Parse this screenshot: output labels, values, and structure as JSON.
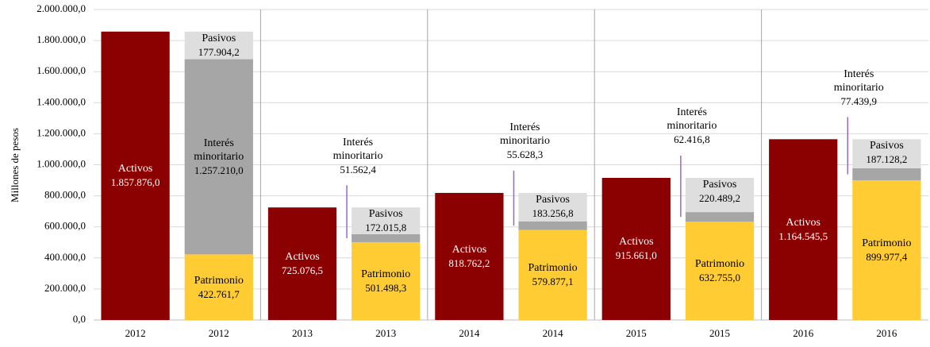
{
  "chart_data": {
    "type": "stacked_bar",
    "y_label": "Millones de pesos",
    "categories": [
      "2012",
      "2012",
      "2013",
      "2013",
      "2014",
      "2014",
      "2015",
      "2015",
      "2016",
      "2016"
    ],
    "series": [
      {
        "name": "Activos",
        "color": "#8b0000",
        "values": [
          1857876.0,
          null,
          725076.5,
          null,
          818762.2,
          null,
          915661.0,
          null,
          1164545.5,
          null
        ],
        "value_labels": [
          "1.857.876,0",
          null,
          "725.076,5",
          null,
          "818.762,2",
          null,
          "915.661,0",
          null,
          "1.164.545,5",
          null
        ]
      },
      {
        "name": "Patrimonio",
        "color": "#ffcc33",
        "values": [
          null,
          422761.7,
          null,
          501498.3,
          null,
          579877.1,
          null,
          632755.0,
          null,
          899977.4
        ],
        "value_labels": [
          null,
          "422.761,7",
          null,
          "501.498,3",
          null,
          "579.877,1",
          null,
          "632.755,0",
          null,
          "899.977,4"
        ]
      },
      {
        "name": "Interés minoritario",
        "color": "#a6a6a6",
        "values": [
          null,
          1257210.0,
          null,
          51562.4,
          null,
          55628.3,
          null,
          62416.8,
          null,
          77439.9
        ],
        "value_labels": [
          null,
          "1.257.210,0",
          null,
          "51.562,4",
          null,
          "55.628,3",
          null,
          "62.416,8",
          null,
          "77.439,9"
        ]
      },
      {
        "name": "Pasivos",
        "color": "#dedede",
        "values": [
          null,
          177904.2,
          null,
          172015.8,
          null,
          183256.8,
          null,
          220489.2,
          null,
          187128.2
        ],
        "value_labels": [
          null,
          "177.904,2",
          null,
          "172.015,8",
          null,
          "183.256,8",
          null,
          "220.489,2",
          null,
          "187.128,2"
        ]
      }
    ],
    "ylim": [
      0,
      2000000
    ],
    "yticks": [
      {
        "value": 0,
        "label": "0,0"
      },
      {
        "value": 200000,
        "label": "200.000,0"
      },
      {
        "value": 400000,
        "label": "400.000,0"
      },
      {
        "value": 600000,
        "label": "600.000,0"
      },
      {
        "value": 800000,
        "label": "800.000,0"
      },
      {
        "value": 1000000,
        "label": "1.000.000,0"
      },
      {
        "value": 1200000,
        "label": "1.200.000,0"
      },
      {
        "value": 1400000,
        "label": "1.400.000,0"
      },
      {
        "value": 1600000,
        "label": "1.600.000,0"
      },
      {
        "value": 1800000,
        "label": "1.800.000,0"
      },
      {
        "value": 2000000,
        "label": "2.000.000,0"
      }
    ],
    "grid": true
  }
}
